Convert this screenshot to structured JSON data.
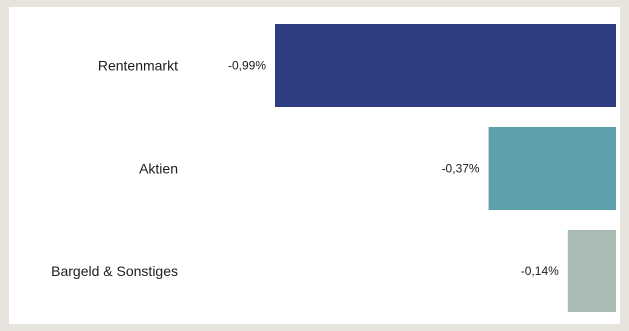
{
  "chart_data": {
    "type": "bar",
    "orientation": "horizontal",
    "categories": [
      "Rentenmarkt",
      "Aktien",
      "Bargeld & Sonstiges"
    ],
    "values": [
      -0.99,
      -0.37,
      -0.14
    ],
    "value_labels": [
      "-0,99%",
      "-0,37%",
      "-0,14%"
    ],
    "colors": [
      "#2e3c82",
      "#5ea1ac",
      "#aabdb5"
    ],
    "xlim": [
      -0.99,
      0
    ],
    "grid": false,
    "legend": "none"
  }
}
